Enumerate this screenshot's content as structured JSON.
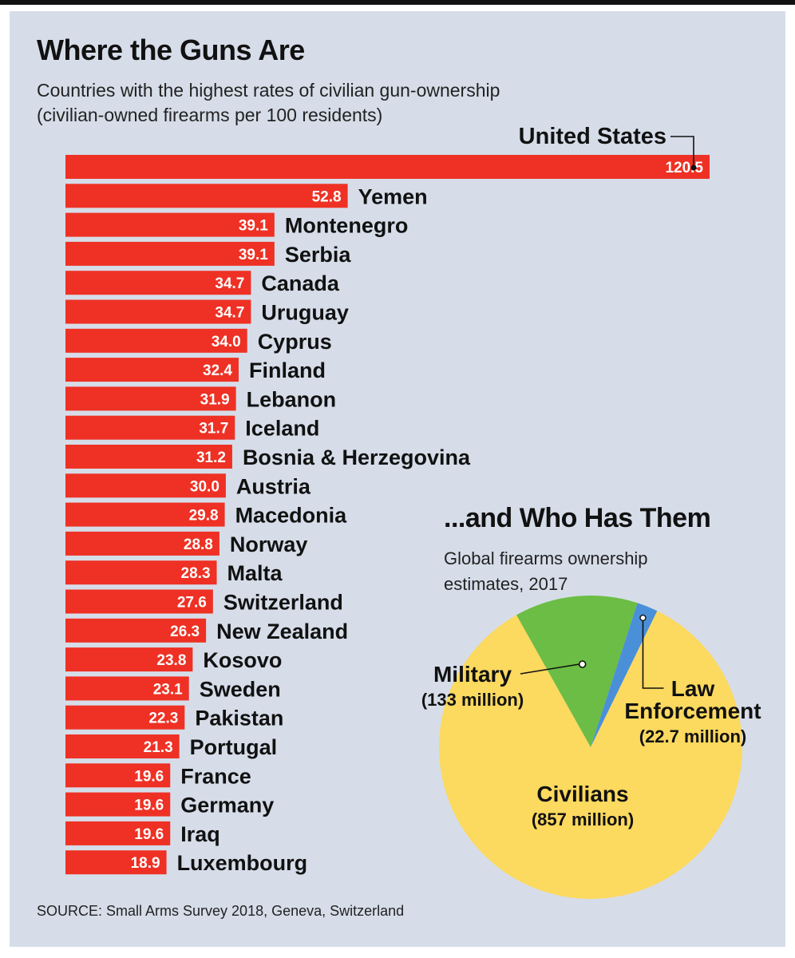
{
  "header": {
    "title": "Where the Guns Are",
    "subtitle_line1": "Countries with the highest rates of civilian gun-ownership",
    "subtitle_line2": "(civilian-owned firearms per 100 residents)"
  },
  "section2": {
    "title": "...and Who Has Them",
    "subtitle_line1": "Global firearms ownership",
    "subtitle_line2": "estimates, 2017"
  },
  "source": "SOURCE: Small Arms Survey 2018, Geneva, Switzerland",
  "colors": {
    "bar": "#ee3124",
    "civilians": "#fcd95f",
    "military": "#6cbd45",
    "law_enforcement": "#4a90d9",
    "background": "#d6dde9"
  },
  "chart_data": [
    {
      "type": "bar",
      "orientation": "horizontal",
      "title": "Where the Guns Are",
      "subtitle": "Countries with the highest rates of civilian gun-ownership (civilian-owned firearms per 100 residents)",
      "categories": [
        "United States",
        "Yemen",
        "Montenegro",
        "Serbia",
        "Canada",
        "Uruguay",
        "Cyprus",
        "Finland",
        "Lebanon",
        "Iceland",
        "Bosnia & Herzegovina",
        "Austria",
        "Macedonia",
        "Norway",
        "Malta",
        "Switzerland",
        "New Zealand",
        "Kosovo",
        "Sweden",
        "Pakistan",
        "Portugal",
        "France",
        "Germany",
        "Iraq",
        "Luxembourg"
      ],
      "values": [
        120.5,
        52.8,
        39.1,
        39.1,
        34.7,
        34.7,
        34.0,
        32.4,
        31.9,
        31.7,
        31.2,
        30.0,
        29.8,
        28.8,
        28.3,
        27.6,
        26.3,
        23.8,
        23.1,
        22.3,
        21.3,
        19.6,
        19.6,
        19.6,
        18.9
      ],
      "value_labels": [
        "120.5",
        "52.8",
        "39.1",
        "39.1",
        "34.7",
        "34.7",
        "34.0",
        "32.4",
        "31.9",
        "31.7",
        "31.2",
        "30.0",
        "29.8",
        "28.8",
        "28.3",
        "27.6",
        "26.3",
        "23.8",
        "23.1",
        "22.3",
        "21.3",
        "19.6",
        "19.6",
        "19.6",
        "18.9"
      ],
      "grid": false,
      "legend": "none"
    },
    {
      "type": "pie",
      "title": "...and Who Has Them",
      "subtitle": "Global firearms ownership estimates, 2017",
      "slices": [
        {
          "label": "Military",
          "detail": "(133 million)",
          "value": 133
        },
        {
          "label_line1": "Law",
          "label_line2": "Enforcement",
          "detail": "(22.7 million)",
          "value": 22.7
        },
        {
          "label": "Civilians",
          "detail": "(857 million)",
          "value": 857
        }
      ],
      "legend": "none"
    }
  ]
}
